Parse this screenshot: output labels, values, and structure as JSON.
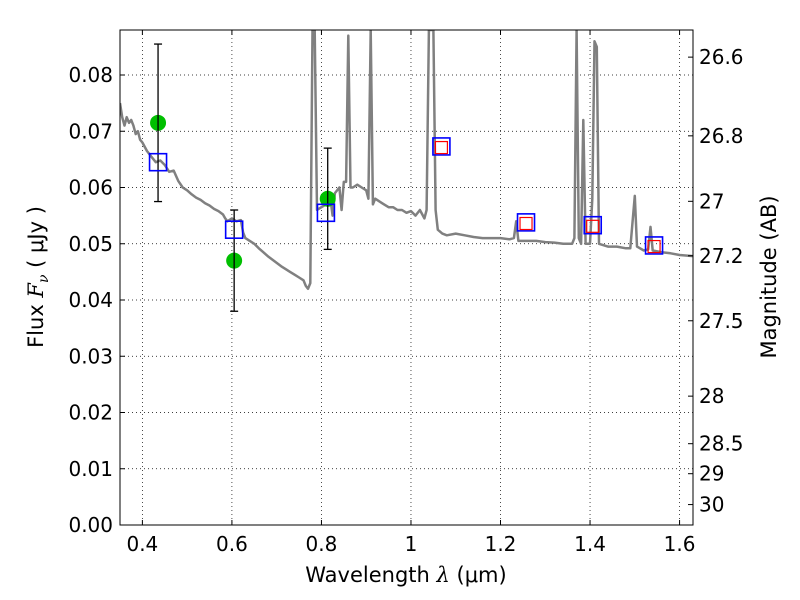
{
  "chart_data": {
    "type": "scatter",
    "title": "",
    "xlabel": {
      "prefix": "Wavelength  ",
      "symbol": "λ",
      "unit": " (μm)"
    },
    "ylabel": {
      "prefix": "Flux  ",
      "symbol": "F",
      "subscript": "ν",
      "unit": "  ( μJy )"
    },
    "y2label": "Magnitude (AB)",
    "xlim": [
      0.35,
      1.63
    ],
    "ylim": [
      0.0,
      0.088
    ],
    "grid": true,
    "legend": "none",
    "x_ticks": [
      {
        "value": 0.4,
        "label": "0.4"
      },
      {
        "value": 0.6,
        "label": "0.6"
      },
      {
        "value": 0.8,
        "label": "0.8"
      },
      {
        "value": 1.0,
        "label": "1"
      },
      {
        "value": 1.2,
        "label": "1.2"
      },
      {
        "value": 1.4,
        "label": "1.4"
      },
      {
        "value": 1.6,
        "label": "1.6"
      }
    ],
    "y_ticks": [
      {
        "value": 0.0,
        "label": "0.00"
      },
      {
        "value": 0.01,
        "label": "0.01"
      },
      {
        "value": 0.02,
        "label": "0.02"
      },
      {
        "value": 0.03,
        "label": "0.03"
      },
      {
        "value": 0.04,
        "label": "0.04"
      },
      {
        "value": 0.05,
        "label": "0.05"
      },
      {
        "value": 0.06,
        "label": "0.06"
      },
      {
        "value": 0.07,
        "label": "0.07"
      },
      {
        "value": 0.08,
        "label": "0.08"
      }
    ],
    "y2_ticks": [
      {
        "mag": 26.6,
        "label": "26.6"
      },
      {
        "mag": 26.8,
        "label": "26.8"
      },
      {
        "mag": 27.0,
        "label": "27"
      },
      {
        "mag": 27.2,
        "label": "27.2"
      },
      {
        "mag": 27.5,
        "label": "27.5"
      },
      {
        "mag": 28.0,
        "label": "28"
      },
      {
        "mag": 28.5,
        "label": "28.5"
      },
      {
        "mag": 29.0,
        "label": "29"
      },
      {
        "mag": 30.0,
        "label": "30"
      }
    ],
    "series": [
      {
        "kind": "line",
        "color": "#808080",
        "points": [
          [
            0.35,
            0.075
          ],
          [
            0.355,
            0.0725
          ],
          [
            0.36,
            0.071
          ],
          [
            0.365,
            0.0725
          ],
          [
            0.37,
            0.0715
          ],
          [
            0.375,
            0.072
          ],
          [
            0.38,
            0.071
          ],
          [
            0.385,
            0.0695
          ],
          [
            0.39,
            0.07
          ],
          [
            0.395,
            0.0685
          ],
          [
            0.4,
            0.068
          ],
          [
            0.41,
            0.0665
          ],
          [
            0.42,
            0.0655
          ],
          [
            0.43,
            0.0645
          ],
          [
            0.44,
            0.0648
          ],
          [
            0.45,
            0.064
          ],
          [
            0.46,
            0.0628
          ],
          [
            0.47,
            0.063
          ],
          [
            0.48,
            0.0612
          ],
          [
            0.49,
            0.06
          ],
          [
            0.5,
            0.0595
          ],
          [
            0.51,
            0.0588
          ],
          [
            0.52,
            0.0582
          ],
          [
            0.53,
            0.0578
          ],
          [
            0.54,
            0.0572
          ],
          [
            0.55,
            0.0568
          ],
          [
            0.56,
            0.0562
          ],
          [
            0.57,
            0.0558
          ],
          [
            0.58,
            0.0552
          ],
          [
            0.585,
            0.0545
          ],
          [
            0.59,
            0.054
          ],
          [
            0.6,
            0.0545
          ],
          [
            0.61,
            0.054
          ],
          [
            0.62,
            0.0542
          ],
          [
            0.625,
            0.052
          ],
          [
            0.63,
            0.051
          ],
          [
            0.64,
            0.0505
          ],
          [
            0.65,
            0.05
          ],
          [
            0.66,
            0.0492
          ],
          [
            0.67,
            0.0485
          ],
          [
            0.68,
            0.0478
          ],
          [
            0.69,
            0.0472
          ],
          [
            0.7,
            0.0466
          ],
          [
            0.71,
            0.046
          ],
          [
            0.72,
            0.0455
          ],
          [
            0.73,
            0.045
          ],
          [
            0.74,
            0.0445
          ],
          [
            0.75,
            0.044
          ],
          [
            0.76,
            0.0435
          ],
          [
            0.765,
            0.0425
          ],
          [
            0.77,
            0.042
          ],
          [
            0.775,
            0.043
          ],
          [
            0.78,
            0.088
          ],
          [
            0.785,
            0.088
          ],
          [
            0.79,
            0.056
          ],
          [
            0.8,
            0.0565
          ],
          [
            0.81,
            0.057
          ],
          [
            0.82,
            0.058
          ],
          [
            0.825,
            0.055
          ],
          [
            0.83,
            0.059
          ],
          [
            0.84,
            0.06
          ],
          [
            0.845,
            0.056
          ],
          [
            0.85,
            0.061
          ],
          [
            0.855,
            0.061
          ],
          [
            0.86,
            0.087
          ],
          [
            0.865,
            0.06
          ],
          [
            0.87,
            0.06
          ],
          [
            0.88,
            0.0605
          ],
          [
            0.89,
            0.06
          ],
          [
            0.9,
            0.0595
          ],
          [
            0.905,
            0.058
          ],
          [
            0.91,
            0.088
          ],
          [
            0.915,
            0.057
          ],
          [
            0.92,
            0.058
          ],
          [
            0.93,
            0.0575
          ],
          [
            0.94,
            0.057
          ],
          [
            0.95,
            0.0565
          ],
          [
            0.96,
            0.0565
          ],
          [
            0.97,
            0.056
          ],
          [
            0.98,
            0.056
          ],
          [
            0.99,
            0.0555
          ],
          [
            1.0,
            0.0558
          ],
          [
            1.01,
            0.055
          ],
          [
            1.02,
            0.056
          ],
          [
            1.03,
            0.0545
          ],
          [
            1.035,
            0.056
          ],
          [
            1.04,
            0.088
          ],
          [
            1.05,
            0.088
          ],
          [
            1.055,
            0.056
          ],
          [
            1.06,
            0.0525
          ],
          [
            1.07,
            0.0518
          ],
          [
            1.08,
            0.0515
          ],
          [
            1.1,
            0.0518
          ],
          [
            1.12,
            0.0515
          ],
          [
            1.14,
            0.0512
          ],
          [
            1.16,
            0.051
          ],
          [
            1.18,
            0.051
          ],
          [
            1.2,
            0.051
          ],
          [
            1.22,
            0.0508
          ],
          [
            1.23,
            0.051
          ],
          [
            1.235,
            0.054
          ],
          [
            1.24,
            0.0505
          ],
          [
            1.26,
            0.0505
          ],
          [
            1.28,
            0.0505
          ],
          [
            1.3,
            0.0503
          ],
          [
            1.32,
            0.0502
          ],
          [
            1.34,
            0.05
          ],
          [
            1.36,
            0.05
          ],
          [
            1.365,
            0.051
          ],
          [
            1.37,
            0.088
          ],
          [
            1.375,
            0.051
          ],
          [
            1.38,
            0.05
          ],
          [
            1.385,
            0.072
          ],
          [
            1.39,
            0.05
          ],
          [
            1.4,
            0.05
          ],
          [
            1.405,
            0.058
          ],
          [
            1.41,
            0.086
          ],
          [
            1.415,
            0.085
          ],
          [
            1.42,
            0.05
          ],
          [
            1.44,
            0.0495
          ],
          [
            1.46,
            0.0495
          ],
          [
            1.48,
            0.0492
          ],
          [
            1.49,
            0.0492
          ],
          [
            1.495,
            0.054
          ],
          [
            1.5,
            0.0585
          ],
          [
            1.505,
            0.0495
          ],
          [
            1.52,
            0.0488
          ],
          [
            1.53,
            0.049
          ],
          [
            1.535,
            0.053
          ],
          [
            1.54,
            0.0488
          ],
          [
            1.56,
            0.0485
          ],
          [
            1.58,
            0.0483
          ],
          [
            1.6,
            0.048
          ],
          [
            1.63,
            0.0478
          ]
        ]
      },
      {
        "kind": "points",
        "marker": "circle",
        "color": "#00bf00",
        "points": [
          [
            0.435,
            0.0715
          ],
          [
            0.605,
            0.047
          ],
          [
            0.814,
            0.058
          ]
        ]
      },
      {
        "kind": "errorbars",
        "color": "#000000",
        "points": [
          {
            "x": 0.435,
            "low": 0.0575,
            "high": 0.0855
          },
          {
            "x": 0.605,
            "low": 0.038,
            "high": 0.056
          },
          {
            "x": 0.814,
            "low": 0.049,
            "high": 0.067
          }
        ]
      },
      {
        "kind": "points",
        "marker": "square",
        "color": "#0000ff",
        "points": [
          [
            0.435,
            0.0645
          ],
          [
            0.605,
            0.0525
          ],
          [
            0.81,
            0.0555
          ],
          [
            1.068,
            0.0673
          ],
          [
            1.257,
            0.0538
          ],
          [
            1.406,
            0.0533
          ],
          [
            1.543,
            0.0497
          ]
        ]
      },
      {
        "kind": "points",
        "marker": "small-square",
        "color": "#ff0000",
        "points": [
          [
            1.068,
            0.0671
          ],
          [
            1.257,
            0.0536
          ],
          [
            1.406,
            0.0531
          ],
          [
            1.543,
            0.0495
          ]
        ]
      }
    ]
  }
}
